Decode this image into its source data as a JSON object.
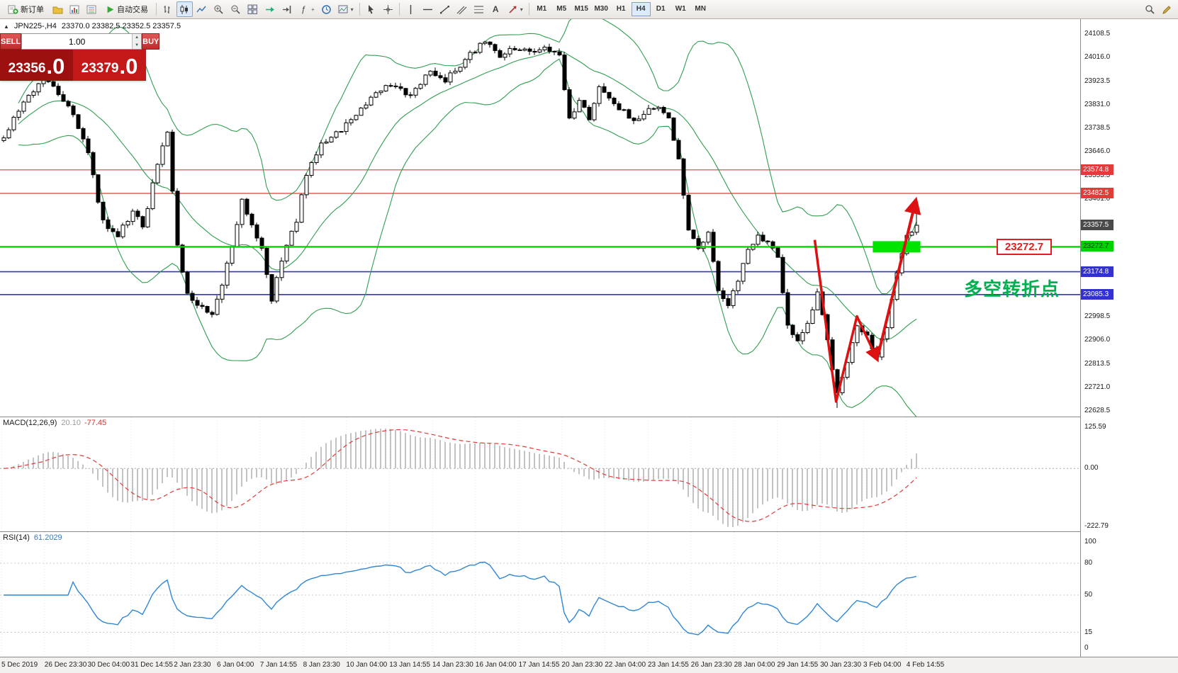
{
  "toolbar": {
    "new_order_label": "新订单",
    "autotrading_label": "自动交易",
    "timeframes": [
      "M1",
      "M5",
      "M15",
      "M30",
      "H1",
      "H4",
      "D1",
      "W1",
      "MN"
    ],
    "active_timeframe": "H4"
  },
  "symbol_header": {
    "collapse_icon": "▲",
    "name": "JPN225-,H4",
    "ohlc": "23370.0 23382.5 23352.5 23357.5"
  },
  "trade_panel": {
    "sell_label": "SELL",
    "buy_label": "BUY",
    "volume": "1.00",
    "sell_price_int": "23356",
    "sell_price_frac": ".0",
    "buy_price_int": "23379",
    "buy_price_frac": ".0"
  },
  "price_axis": {
    "ticks": [
      24108.5,
      24016.0,
      23923.5,
      23831.0,
      23738.5,
      23646.0,
      23553.5,
      23461.0,
      22998.5,
      22906.0,
      22813.5,
      22721.0,
      22628.5
    ],
    "levels": [
      {
        "value": 23574.8,
        "label": "23574.8",
        "type": "resistance",
        "color": "#e23b3b"
      },
      {
        "value": 23482.5,
        "label": "23482.5",
        "type": "resistance",
        "color": "#e23b3b"
      },
      {
        "value": 23357.5,
        "label": "23357.5",
        "type": "current",
        "color": "#4a4a4a"
      },
      {
        "value": 23272.7,
        "label": "23272.7",
        "type": "pivot",
        "color": "#00d200"
      },
      {
        "value": 23174.8,
        "label": "23174.8",
        "type": "support",
        "color": "#3333cc"
      },
      {
        "value": 23085.3,
        "label": "23085.3",
        "type": "support",
        "color": "#3333cc"
      }
    ]
  },
  "annotations": {
    "price_callout": "23272.7",
    "note_text": "多空转折点",
    "note_color": "#00b050"
  },
  "macd_panel": {
    "label": "MACD(12,26,9)",
    "main_value": "20.10",
    "signal_value": "-77.45",
    "scale_top": "125.59",
    "scale_zero": "0.00",
    "scale_bottom": "-222.79"
  },
  "rsi_panel": {
    "label": "RSI(14)",
    "value": "61.2029",
    "scale": [
      100,
      80,
      50,
      15,
      0
    ],
    "levels": [
      80,
      50,
      15
    ]
  },
  "time_axis": {
    "labels": [
      "5 Dec 2019",
      "26 Dec 23:30",
      "30 Dec 04:00",
      "31 Dec 14:55",
      "2 Jan 23:30",
      "6 Jan 04:00",
      "7 Jan 14:55",
      "8 Jan 23:30",
      "10 Jan 04:00",
      "13 Jan 14:55",
      "14 Jan 23:30",
      "16 Jan 04:00",
      "17 Jan 14:55",
      "20 Jan 23:30",
      "22 Jan 04:00",
      "23 Jan 14:55",
      "26 Jan 23:30",
      "28 Jan 04:00",
      "29 Jan 14:55",
      "30 Jan 23:30",
      "3 Feb 04:00",
      "4 Feb 14:55"
    ]
  },
  "chart_data": {
    "type": "candlestick",
    "symbol": "JPN225-",
    "timeframe": "H4",
    "candle_count": 185,
    "price_range": [
      22628.5,
      24108.5
    ],
    "close_waypoints": [
      [
        0,
        23690
      ],
      [
        4,
        23850
      ],
      [
        8,
        23930
      ],
      [
        11,
        23880
      ],
      [
        14,
        23790
      ],
      [
        17,
        23640
      ],
      [
        20,
        23370
      ],
      [
        23,
        23310
      ],
      [
        26,
        23420
      ],
      [
        28,
        23340
      ],
      [
        31,
        23600
      ],
      [
        33,
        23720
      ],
      [
        35,
        23270
      ],
      [
        37,
        23090
      ],
      [
        40,
        23030
      ],
      [
        42,
        23010
      ],
      [
        44,
        23130
      ],
      [
        46,
        23270
      ],
      [
        48,
        23460
      ],
      [
        50,
        23350
      ],
      [
        52,
        23260
      ],
      [
        54,
        23060
      ],
      [
        55,
        23160
      ],
      [
        57,
        23270
      ],
      [
        59,
        23380
      ],
      [
        61,
        23560
      ],
      [
        64,
        23680
      ],
      [
        67,
        23720
      ],
      [
        70,
        23770
      ],
      [
        74,
        23860
      ],
      [
        78,
        23915
      ],
      [
        82,
        23870
      ],
      [
        86,
        23960
      ],
      [
        89,
        23930
      ],
      [
        93,
        24010
      ],
      [
        97,
        24080
      ],
      [
        100,
        24020
      ],
      [
        103,
        24050
      ],
      [
        106,
        24035
      ],
      [
        109,
        24065
      ],
      [
        112,
        24020
      ],
      [
        114,
        23770
      ],
      [
        116,
        23855
      ],
      [
        118,
        23780
      ],
      [
        120,
        23900
      ],
      [
        122,
        23855
      ],
      [
        125,
        23800
      ],
      [
        128,
        23770
      ],
      [
        131,
        23825
      ],
      [
        134,
        23780
      ],
      [
        136,
        23620
      ],
      [
        138,
        23350
      ],
      [
        140,
        23260
      ],
      [
        142,
        23320
      ],
      [
        144,
        23110
      ],
      [
        146,
        23050
      ],
      [
        148,
        23140
      ],
      [
        150,
        23260
      ],
      [
        152,
        23320
      ],
      [
        154,
        23290
      ],
      [
        156,
        23230
      ],
      [
        158,
        22965
      ],
      [
        160,
        22905
      ],
      [
        162,
        22965
      ],
      [
        164,
        23085
      ],
      [
        166,
        22905
      ],
      [
        168,
        22695
      ],
      [
        170,
        22815
      ],
      [
        172,
        22965
      ],
      [
        174,
        22920
      ],
      [
        176,
        22845
      ],
      [
        178,
        22965
      ],
      [
        180,
        23170
      ],
      [
        182,
        23320
      ],
      [
        184,
        23357.5
      ]
    ],
    "special": {
      "low_idx": 168,
      "low_price": 22640,
      "last_close": 23357.5,
      "last_high": 23420
    },
    "indicators": {
      "bollinger": {
        "period": 20,
        "deviation": 2,
        "color": "#2f9e4f"
      },
      "macd": {
        "fast": 12,
        "slow": 26,
        "signal": 9,
        "hist_color": "#b4b4b4",
        "signal_color": "#e53935"
      },
      "rsi": {
        "period": 14,
        "color": "#2f86d6"
      }
    },
    "trend_annotation": {
      "zigzag": [
        [
          163.5,
          23300
        ],
        [
          167.8,
          22665
        ],
        [
          172,
          23000
        ],
        [
          176,
          22835
        ]
      ],
      "arrow_up": [
        [
          176.3,
          22850
        ],
        [
          183.8,
          23450
        ]
      ],
      "color": "#dd1111"
    },
    "highlight_box": {
      "from_idx": 175.2,
      "to_idx": 184.8,
      "price": 23272.7,
      "color": "#00e400"
    }
  }
}
